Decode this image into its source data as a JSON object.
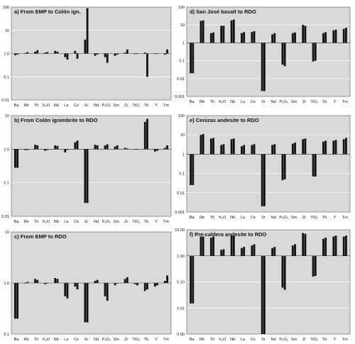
{
  "figure": {
    "categories": [
      "Ba",
      "Rb",
      "Th",
      "K2O",
      "Nb",
      "La",
      "Ce",
      "Sr",
      "Nd",
      "P2O5",
      "Sm",
      "Zr",
      "TiO2",
      "Tb",
      "Y",
      "Tm"
    ],
    "category_labels": [
      "Ba",
      "Rb",
      "Th",
      "K₂O",
      "Nb",
      "La",
      "Ce",
      "Sr",
      "Nd",
      "P₂O₅",
      "Sm",
      "Zr",
      "TiO₂",
      "Tb",
      "Y",
      "Tm"
    ]
  },
  "chart_data": [
    {
      "type": "bar",
      "title": "a) From EMP to Colón ign.",
      "scale": "log",
      "ylim": [
        0.01,
        100
      ],
      "tick_labels": [
        "100",
        "10",
        "1.0",
        "0.1",
        "0.01"
      ],
      "grid": true,
      "series": [
        {
          "values": [
            0.85,
            0.9
          ]
        },
        {
          "values": [
            1.05,
            1.15
          ]
        },
        {
          "values": [
            1.2,
            1.4
          ]
        },
        {
          "values": [
            1.1,
            1.15
          ]
        },
        {
          "values": [
            1.3,
            1.2
          ]
        },
        {
          "values": [
            0.7,
            0.55
          ]
        },
        {
          "values": [
            1.3,
            0.6
          ]
        },
        {
          "values": [
            4.0,
            90
          ]
        },
        {
          "values": [
            0.8,
            0.9
          ]
        },
        {
          "values": [
            0.7,
            0.4
          ]
        },
        {
          "values": [
            0.8,
            0.9
          ]
        },
        {
          "values": [
            1.1,
            1.5
          ]
        },
        {
          "values": [
            0.95,
            1.0
          ]
        },
        {
          "values": [
            1.1,
            0.1
          ]
        },
        {
          "values": [
            1.0,
            1.0
          ]
        },
        {
          "values": [
            0.9,
            1.5
          ]
        }
      ]
    },
    {
      "type": "bar",
      "title": "b) From Colón ignimbrite to RDO",
      "scale": "log",
      "ylim": [
        0.01,
        10
      ],
      "tick_labels": [
        "10",
        "1.0",
        "0.1",
        "0.01"
      ],
      "grid": true,
      "series": [
        {
          "values": [
            0.28,
            0.28
          ]
        },
        {
          "values": [
            0.95,
            0.95
          ]
        },
        {
          "values": [
            1.35,
            1.3
          ]
        },
        {
          "values": [
            0.9,
            0.95
          ]
        },
        {
          "values": [
            1.3,
            1.25
          ]
        },
        {
          "values": [
            0.8,
            0.95
          ]
        },
        {
          "values": [
            1.6,
            1.8
          ]
        },
        {
          "values": [
            0.025,
            0.025
          ]
        },
        {
          "values": [
            1.35,
            1.3
          ]
        },
        {
          "values": [
            1.3,
            1.4
          ]
        },
        {
          "values": [
            1.2,
            1.3
          ]
        },
        {
          "values": [
            1.1,
            1.05
          ]
        },
        {
          "values": [
            1.0,
            1.0
          ]
        },
        {
          "values": [
            6.5,
            8.0
          ]
        },
        {
          "values": [
            0.85,
            0.9
          ]
        },
        {
          "values": [
            1.1,
            1.3
          ]
        }
      ]
    },
    {
      "type": "bar",
      "title": "c) From EMP to RDO",
      "scale": "log",
      "ylim": [
        0.1,
        10
      ],
      "tick_labels": [
        "10",
        "1.0",
        "0.1"
      ],
      "grid": true,
      "series": [
        {
          "values": [
            0.2,
            0.2
          ]
        },
        {
          "values": [
            1.0,
            1.05
          ]
        },
        {
          "values": [
            1.2,
            1.15
          ]
        },
        {
          "values": [
            0.95,
            1.0
          ]
        },
        {
          "values": [
            1.25,
            1.2
          ]
        },
        {
          "values": [
            0.55,
            0.5
          ]
        },
        {
          "values": [
            0.85,
            0.75
          ]
        },
        {
          "values": [
            0.17,
            0.17
          ]
        },
        {
          "values": [
            1.1,
            1.15
          ]
        },
        {
          "values": [
            0.55,
            0.45
          ]
        },
        {
          "values": [
            0.9,
            1.0
          ]
        },
        {
          "values": [
            1.2,
            1.3
          ]
        },
        {
          "values": [
            0.95,
            0.9
          ]
        },
        {
          "values": [
            0.7,
            0.75
          ]
        },
        {
          "values": [
            0.85,
            0.9
          ]
        },
        {
          "values": [
            1.1,
            1.4
          ]
        }
      ]
    },
    {
      "type": "bar",
      "title": "d) San José basalt to RDO",
      "scale": "log",
      "ylim": [
        0.001,
        100
      ],
      "tick_labels": [
        "100",
        "10",
        "1",
        "0.1",
        "0.01",
        "0.001"
      ],
      "grid": true,
      "series": [
        {
          "values": [
            0.02,
            0.02
          ]
        },
        {
          "values": [
            17,
            18
          ]
        },
        {
          "values": [
            3.5,
            3.8
          ]
        },
        {
          "values": [
            9,
            9
          ]
        },
        {
          "values": [
            18,
            20
          ]
        },
        {
          "values": [
            3.5,
            4
          ]
        },
        {
          "values": [
            4,
            4.5
          ]
        },
        {
          "values": [
            0.002,
            0.002
          ]
        },
        {
          "values": [
            3,
            3.5
          ]
        },
        {
          "values": [
            0.06,
            0.05
          ]
        },
        {
          "values": [
            3.5,
            3.8
          ]
        },
        {
          "values": [
            10,
            9
          ]
        },
        {
          "values": [
            0.09,
            0.1
          ]
        },
        {
          "values": [
            3.5,
            4
          ]
        },
        {
          "values": [
            5,
            5.5
          ]
        },
        {
          "values": [
            6,
            7
          ]
        }
      ]
    },
    {
      "type": "bar",
      "title": "e) Cenizas andesite to RDO",
      "scale": "log",
      "ylim": [
        0.001,
        100
      ],
      "tick_labels": [
        "100",
        "10",
        "1",
        "0.1",
        "0.01",
        "0.001"
      ],
      "grid": true,
      "series": [
        {
          "values": [
            0.025,
            0.025
          ]
        },
        {
          "values": [
            10,
            11
          ]
        },
        {
          "values": [
            6.5,
            7
          ]
        },
        {
          "values": [
            3,
            3.3
          ]
        },
        {
          "values": [
            6,
            6.5
          ]
        },
        {
          "values": [
            2.6,
            3
          ]
        },
        {
          "values": [
            3,
            3.3
          ]
        },
        {
          "values": [
            0.002,
            0.002
          ]
        },
        {
          "values": [
            3,
            3.3
          ]
        },
        {
          "values": [
            0.045,
            0.05
          ]
        },
        {
          "values": [
            3.5,
            4
          ]
        },
        {
          "values": [
            6,
            6.5
          ]
        },
        {
          "values": [
            0.07,
            0.07
          ]
        },
        {
          "values": [
            4.5,
            5
          ]
        },
        {
          "values": [
            5,
            5.5
          ]
        },
        {
          "values": [
            6,
            7
          ]
        }
      ]
    },
    {
      "type": "bar",
      "title": "f) Pre-caldera andesite to RDO",
      "scale": "log",
      "ylim": [
        0.001,
        10
      ],
      "tick_labels": [
        "10.00",
        "1.00",
        "0.10",
        "0.01",
        "0.00"
      ],
      "grid": true,
      "series": [
        {
          "values": [
            0.015,
            0.015
          ]
        },
        {
          "values": [
            5.5,
            5.5
          ]
        },
        {
          "values": [
            5,
            5.5
          ]
        },
        {
          "values": [
            1.7,
            1.8
          ]
        },
        {
          "values": [
            6,
            6
          ]
        },
        {
          "values": [
            2,
            2.2
          ]
        },
        {
          "values": [
            2.5,
            2.8
          ]
        },
        {
          "values": [
            0.001,
            0.001
          ]
        },
        {
          "values": [
            2,
            2.2
          ]
        },
        {
          "values": [
            0.06,
            0.05
          ]
        },
        {
          "values": [
            2.5,
            2.8
          ]
        },
        {
          "values": [
            7.5,
            7
          ]
        },
        {
          "values": [
            0.16,
            0.17
          ]
        },
        {
          "values": [
            4.5,
            5
          ]
        },
        {
          "values": [
            5.5,
            6
          ]
        },
        {
          "values": [
            5.5,
            6
          ]
        }
      ]
    }
  ]
}
